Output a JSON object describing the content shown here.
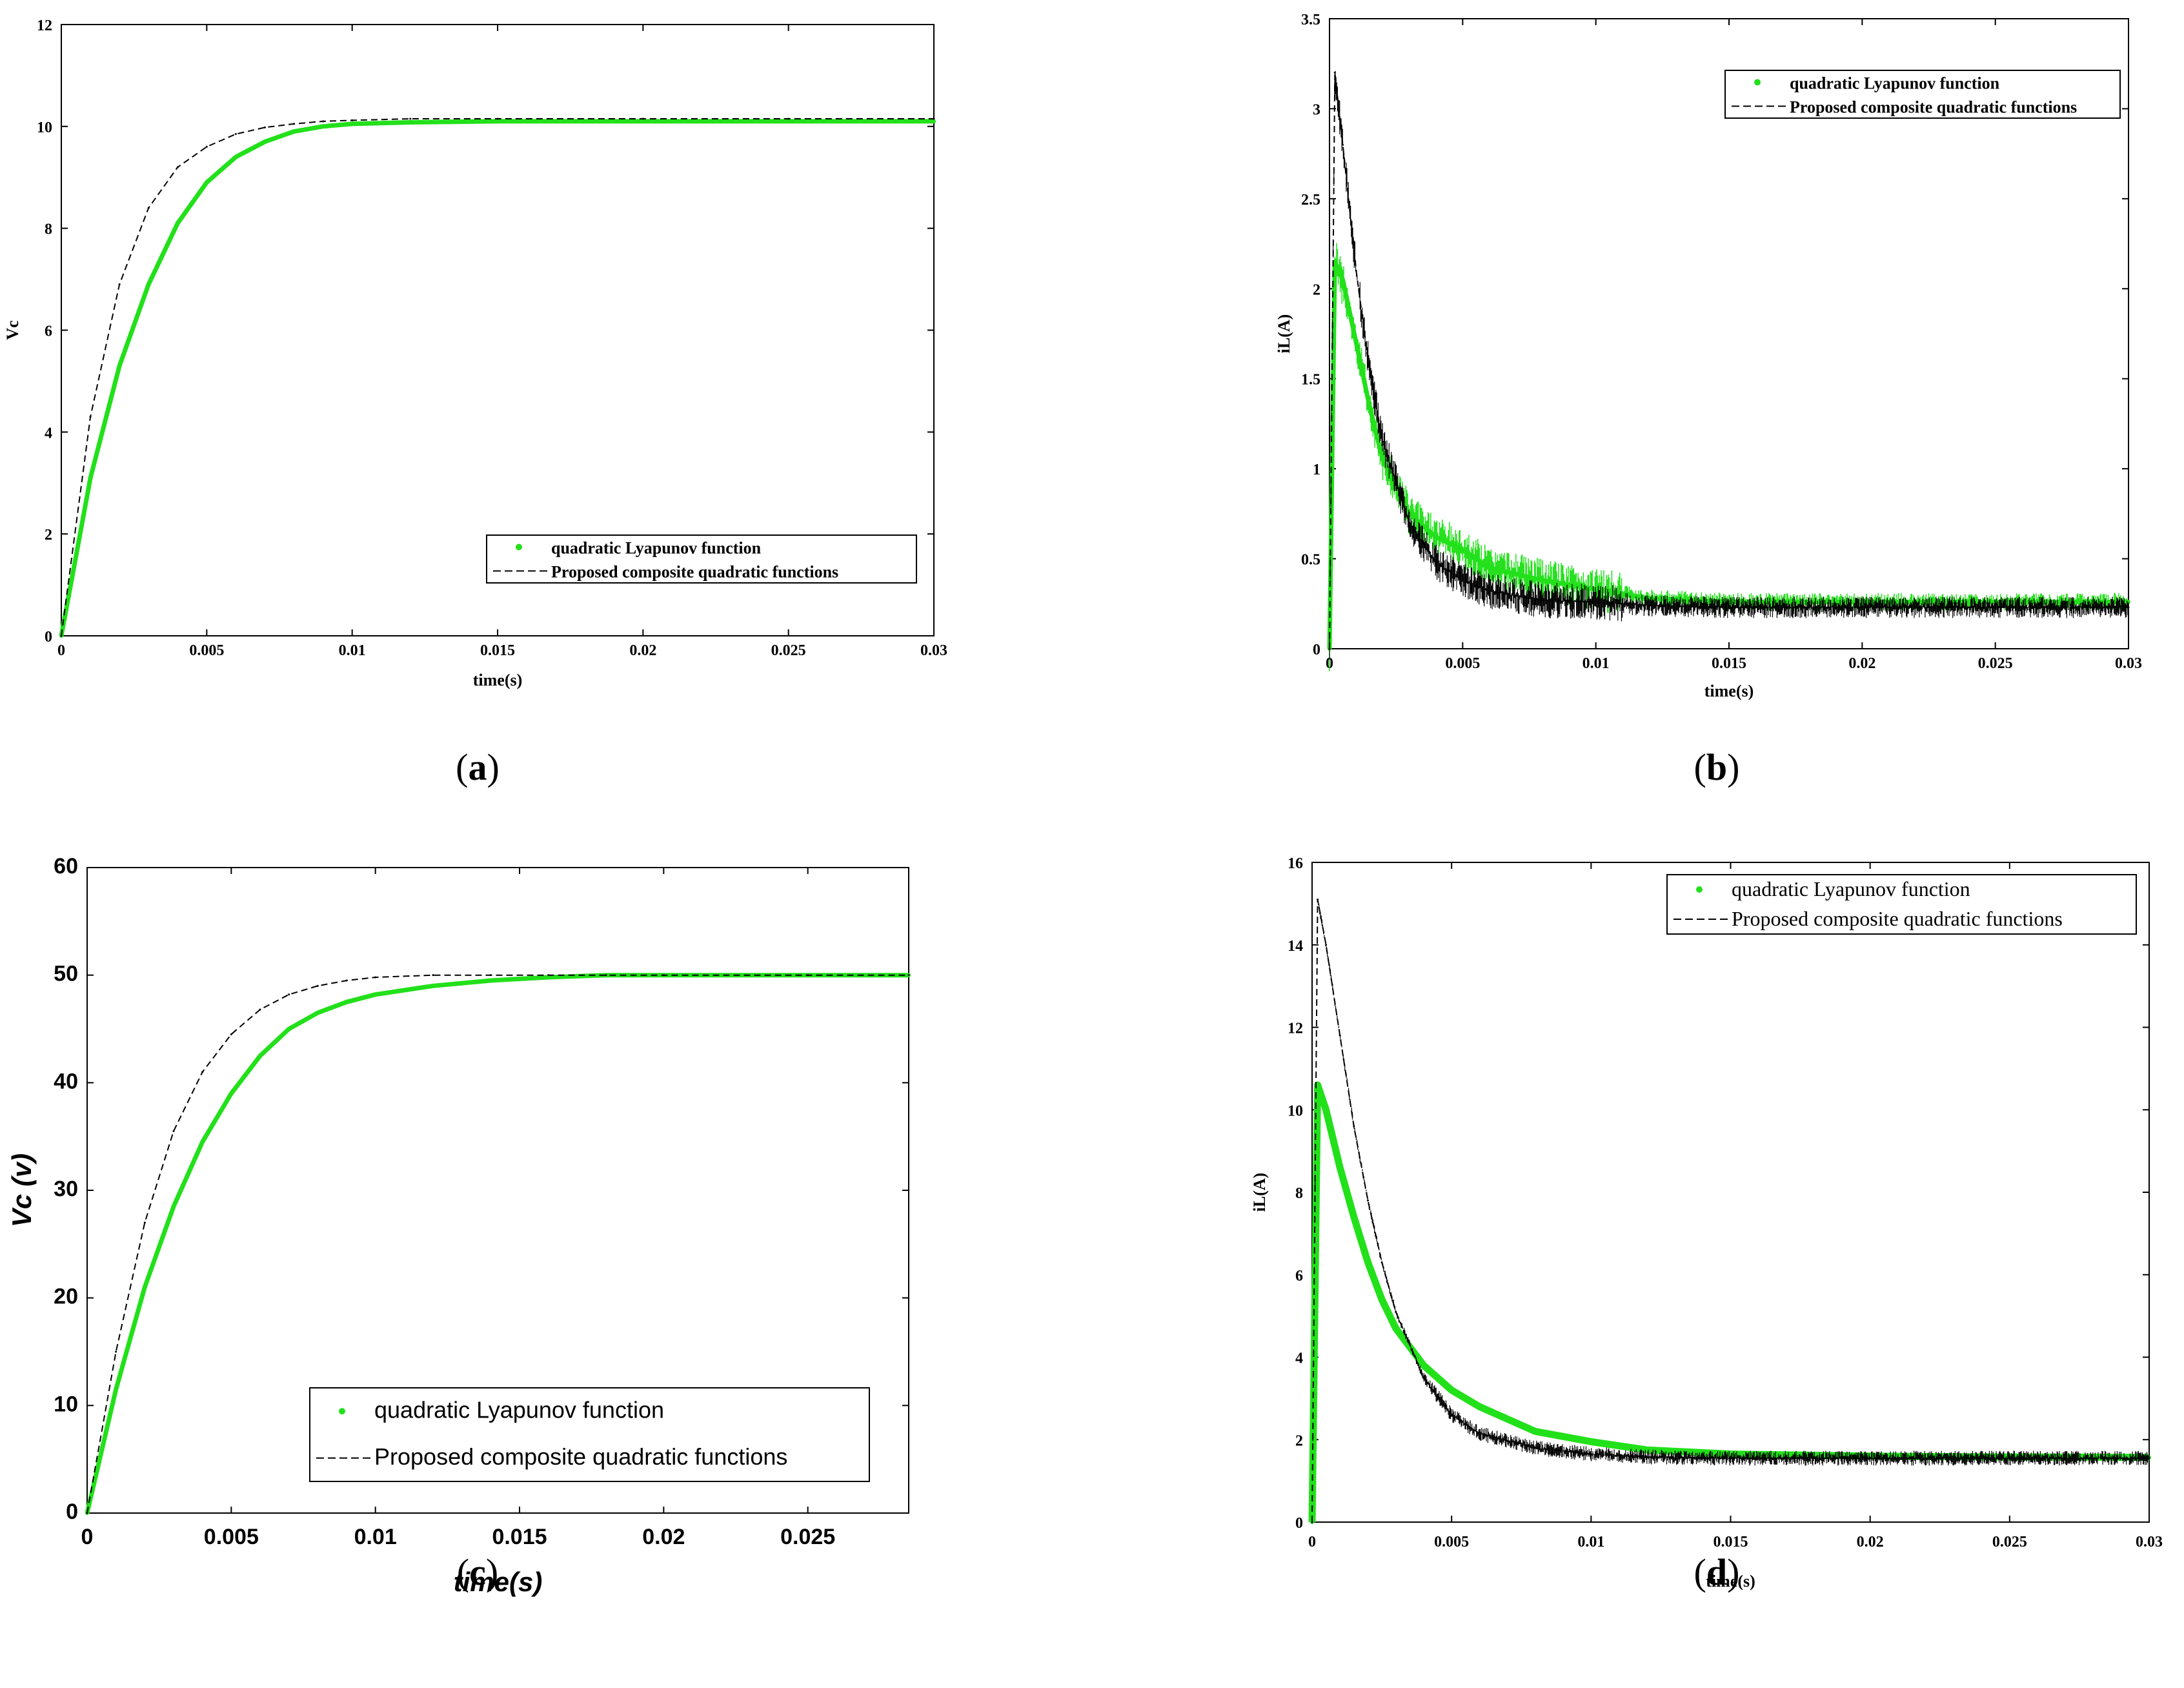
{
  "colors": {
    "quadratic": "#22e01a",
    "composite": "#000000",
    "frame": "#000000"
  },
  "chart_data": [
    {
      "id": "a",
      "type": "line",
      "caption": {
        "open": "(",
        "letter": "a",
        "close": ")"
      },
      "xlabel": "time(s)",
      "ylabel": "Vc",
      "xlim": [
        0,
        0.03
      ],
      "ylim": [
        0,
        12
      ],
      "xticks": [
        "0",
        "0.005",
        "0.01",
        "0.015",
        "0.02",
        "0.025",
        "0.03"
      ],
      "yticks": [
        "0",
        "2",
        "4",
        "6",
        "8",
        "10",
        "12"
      ],
      "legend_position": "lower-right",
      "series": [
        {
          "name": "quadratic Lyapunov function",
          "style": "green-dots",
          "x": [
            0,
            0.001,
            0.002,
            0.003,
            0.004,
            0.005,
            0.006,
            0.007,
            0.008,
            0.009,
            0.01,
            0.012,
            0.015,
            0.02,
            0.025,
            0.03
          ],
          "y": [
            0,
            3.1,
            5.3,
            6.9,
            8.1,
            8.9,
            9.4,
            9.7,
            9.9,
            10.0,
            10.05,
            10.08,
            10.1,
            10.1,
            10.1,
            10.1
          ]
        },
        {
          "name": "Proposed composite quadratic functions",
          "style": "black-dashed",
          "x": [
            0,
            0.001,
            0.002,
            0.003,
            0.004,
            0.005,
            0.006,
            0.007,
            0.008,
            0.009,
            0.01,
            0.012,
            0.015,
            0.02,
            0.025,
            0.03
          ],
          "y": [
            0,
            4.3,
            6.9,
            8.4,
            9.2,
            9.6,
            9.85,
            9.98,
            10.05,
            10.1,
            10.12,
            10.15,
            10.15,
            10.15,
            10.15,
            10.15
          ]
        }
      ]
    },
    {
      "id": "b",
      "type": "line",
      "caption": {
        "open": "(",
        "letter": "b",
        "close": ")"
      },
      "xlabel": "time(s)",
      "ylabel": "iL(A)",
      "xlim": [
        0,
        0.03
      ],
      "ylim": [
        0,
        3.5
      ],
      "xticks": [
        "0",
        "0.005",
        "0.01",
        "0.015",
        "0.02",
        "0.025",
        "0.03"
      ],
      "yticks": [
        "0",
        "0.5",
        "1",
        "1.5",
        "2",
        "2.5",
        "3",
        "3.5"
      ],
      "legend_position": "top-right",
      "series": [
        {
          "name": "quadratic Lyapunov function",
          "style": "green-dots",
          "x": [
            0,
            0.0002,
            0.0005,
            0.001,
            0.0015,
            0.002,
            0.003,
            0.004,
            0.005,
            0.006,
            0.008,
            0.01,
            0.012,
            0.015,
            0.02,
            0.025,
            0.03
          ],
          "y": [
            0,
            2.15,
            2.05,
            1.7,
            1.35,
            1.05,
            0.75,
            0.62,
            0.55,
            0.45,
            0.38,
            0.33,
            0.28,
            0.26,
            0.26,
            0.26,
            0.26
          ]
        },
        {
          "name": "Proposed composite quadratic functions",
          "style": "black-dashed",
          "x": [
            0,
            0.0002,
            0.0005,
            0.001,
            0.0015,
            0.002,
            0.003,
            0.004,
            0.005,
            0.006,
            0.008,
            0.01,
            0.012,
            0.015,
            0.02,
            0.025,
            0.03
          ],
          "y": [
            0,
            3.2,
            2.8,
            2.1,
            1.55,
            1.15,
            0.7,
            0.48,
            0.38,
            0.32,
            0.27,
            0.26,
            0.24,
            0.23,
            0.23,
            0.23,
            0.23
          ]
        }
      ]
    },
    {
      "id": "c",
      "type": "line",
      "caption": {
        "open": "(",
        "letter": "c",
        "close": ")"
      },
      "xlabel": "time(s)",
      "ylabel": "Vc (v)",
      "xlim": [
        0,
        0.0285
      ],
      "ylim": [
        0,
        60
      ],
      "xticks": [
        "0",
        "0.005",
        "0.01",
        "0.015",
        "0.02",
        "0.025"
      ],
      "xtick_values": [
        0,
        0.005,
        0.01,
        0.015,
        0.02,
        0.025
      ],
      "yticks": [
        "0",
        "10",
        "20",
        "30",
        "40",
        "50",
        "60"
      ],
      "legend_position": "lower-center",
      "series": [
        {
          "name": "quadratic Lyapunov function",
          "style": "green-dots",
          "x": [
            0,
            0.001,
            0.002,
            0.003,
            0.004,
            0.005,
            0.006,
            0.007,
            0.008,
            0.009,
            0.01,
            0.012,
            0.014,
            0.016,
            0.018,
            0.02,
            0.025,
            0.0285
          ],
          "y": [
            0,
            11.5,
            21.0,
            28.5,
            34.5,
            39.0,
            42.5,
            45.0,
            46.5,
            47.5,
            48.2,
            49.0,
            49.5,
            49.8,
            50.0,
            50.0,
            50.0,
            50.0
          ]
        },
        {
          "name": "Proposed composite quadratic functions",
          "style": "black-dashed",
          "x": [
            0,
            0.001,
            0.002,
            0.003,
            0.004,
            0.005,
            0.006,
            0.007,
            0.008,
            0.009,
            0.01,
            0.012,
            0.014,
            0.016,
            0.018,
            0.02,
            0.025,
            0.0285
          ],
          "y": [
            0,
            15.0,
            27.0,
            35.5,
            41.0,
            44.5,
            46.8,
            48.2,
            49.0,
            49.5,
            49.8,
            50.0,
            50.0,
            50.0,
            50.0,
            50.0,
            50.0,
            50.0
          ]
        }
      ]
    },
    {
      "id": "d",
      "type": "line",
      "caption": {
        "open": "(",
        "letter": "d",
        "close": ")"
      },
      "xlabel": "time(s)",
      "ylabel": "iL(A)",
      "xlim": [
        0,
        0.03
      ],
      "ylim": [
        0,
        16
      ],
      "xticks": [
        "0",
        "0.005",
        "0.01",
        "0.015",
        "0.02",
        "0.025",
        "0.03"
      ],
      "yticks": [
        "0",
        "2",
        "4",
        "6",
        "8",
        "10",
        "12",
        "14",
        "16"
      ],
      "legend_position": "top-right",
      "series": [
        {
          "name": "quadratic Lyapunov function",
          "style": "green-dots",
          "x": [
            0,
            0.0002,
            0.0005,
            0.001,
            0.0015,
            0.002,
            0.0025,
            0.003,
            0.004,
            0.005,
            0.006,
            0.008,
            0.01,
            0.012,
            0.015,
            0.02,
            0.025,
            0.03
          ],
          "y": [
            0,
            10.6,
            10.0,
            8.6,
            7.4,
            6.3,
            5.4,
            4.7,
            3.8,
            3.2,
            2.8,
            2.2,
            1.95,
            1.75,
            1.65,
            1.6,
            1.58,
            1.57
          ]
        },
        {
          "name": "Proposed composite quadratic functions",
          "style": "black-dashed",
          "x": [
            0,
            0.0002,
            0.0005,
            0.001,
            0.0015,
            0.002,
            0.0025,
            0.003,
            0.004,
            0.005,
            0.006,
            0.008,
            0.01,
            0.012,
            0.015,
            0.02,
            0.025,
            0.03
          ],
          "y": [
            0,
            15.1,
            14.0,
            11.8,
            9.6,
            7.8,
            6.3,
            5.1,
            3.5,
            2.6,
            2.15,
            1.8,
            1.65,
            1.58,
            1.55,
            1.55,
            1.55,
            1.55
          ]
        }
      ]
    }
  ]
}
